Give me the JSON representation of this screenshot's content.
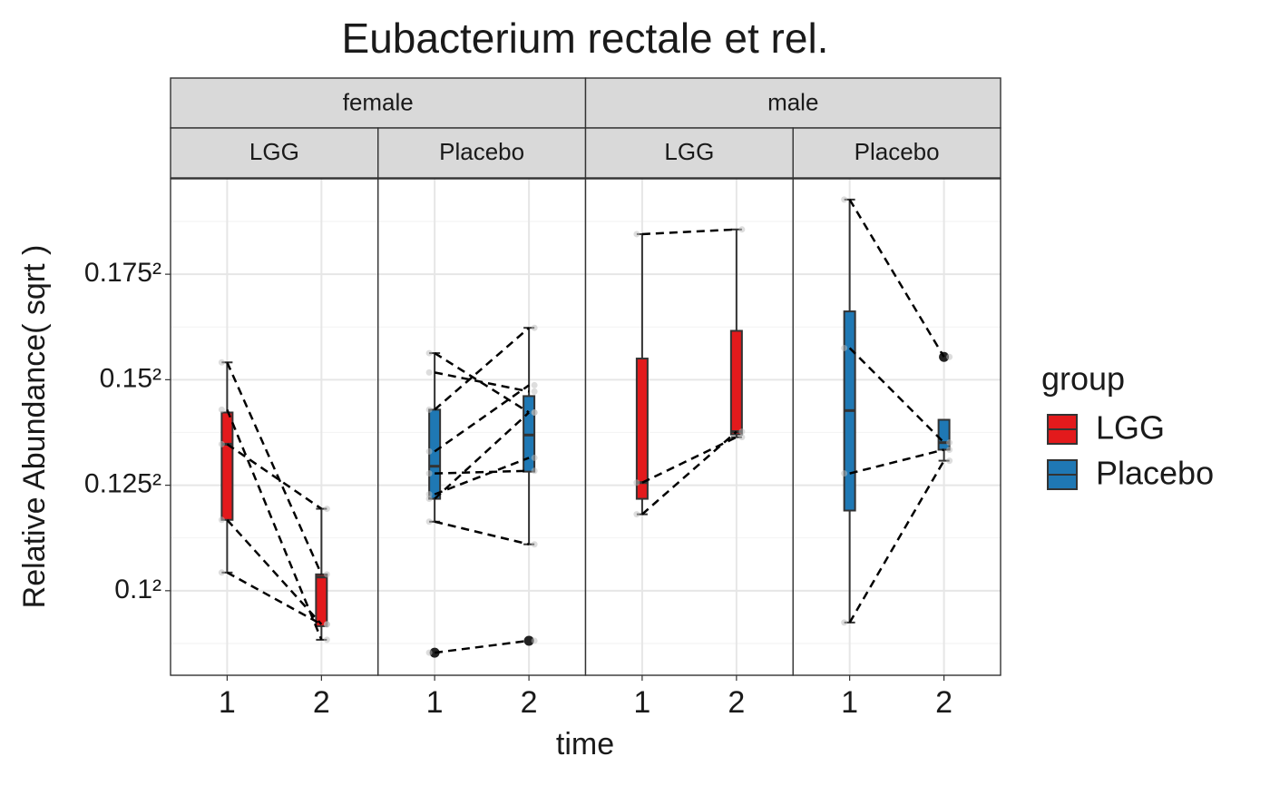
{
  "chart_data": {
    "type": "boxplot",
    "title": "Eubacterium rectale et rel.",
    "xlabel": "time",
    "ylabel": "Relative Abundance( sqrt )",
    "yscale": "sqrt",
    "ylim": [
      0.006394,
      0.03905
    ],
    "yticks": [
      {
        "value": 0.01,
        "label": "0.1²"
      },
      {
        "value": 0.015625,
        "label": "0.125²"
      },
      {
        "value": 0.0225,
        "label": "0.15²"
      },
      {
        "value": 0.030625,
        "label": "0.175²"
      }
    ],
    "yminor_ticks": [
      0.007656,
      0.01266,
      0.01891,
      0.02641,
      0.03516
    ],
    "grid": true,
    "legend_title": "group",
    "series": [
      {
        "name": "LGG",
        "color": "#e31a1c"
      },
      {
        "name": "Placebo",
        "color": "#1f78b4"
      }
    ],
    "facet_rows": [
      {
        "label": "female",
        "panels": [
          {
            "label": "LGG",
            "color": "#e31a1c",
            "categories": [
              "1",
              "2"
            ],
            "boxes": [
              {
                "min": 0.01088,
                "q1": 0.01364,
                "median": 0.01815,
                "q3": 0.02023,
                "max": 0.02375,
                "outliers": []
              },
              {
                "min": 0.00781,
                "q1": 0.00839,
                "median": 0.01066,
                "q3": 0.01079,
                "max": 0.01426,
                "outliers": []
              }
            ],
            "subjects": [
              [
                0.02375,
                0.01079
              ],
              [
                0.02042,
                0.00781
              ],
              [
                0.01815,
                0.01426
              ],
              [
                0.01364,
                0.00847
              ],
              [
                0.01088,
                0.00847
              ]
            ]
          },
          {
            "label": "Placebo",
            "color": "#1f78b4",
            "categories": [
              "1",
              "2"
            ],
            "boxes": [
              {
                "min": 0.01354,
                "q1": 0.01483,
                "median": 0.01677,
                "q3": 0.02042,
                "max": 0.02443,
                "outliers": [
                  0.00728
                ]
              },
              {
                "min": 0.01232,
                "q1": 0.01644,
                "median": 0.01874,
                "q3": 0.02135,
                "max": 0.02634,
                "outliers": [
                  0.00777
                ]
              }
            ],
            "subjects": [
              [
                0.02443,
                0.02023
              ],
              [
                0.02302,
                0.02167
              ],
              [
                0.02042,
                0.02634
              ],
              [
                0.01769,
                0.02211
              ],
              [
                0.01633,
                0.01649
              ],
              [
                0.01483,
                0.02023
              ],
              [
                0.01509,
                0.01729
              ],
              [
                0.01354,
                0.01232
              ],
              [
                0.00728,
                0.00777
              ]
            ]
          }
        ]
      },
      {
        "label": "male",
        "panels": [
          {
            "label": "LGG",
            "color": "#e31a1c",
            "categories": [
              "1",
              "2"
            ],
            "boxes": [
              {
                "min": 0.01395,
                "q1": 0.01483,
                "median": 0.01578,
                "q3": 0.02403,
                "max": 0.03404,
                "outliers": []
              },
              {
                "min": 0.0186,
                "q1": 0.01878,
                "median": 0.01896,
                "q3": 0.02611,
                "max": 0.03445,
                "outliers": []
              }
            ],
            "subjects": [
              [
                0.03404,
                0.03445
              ],
              [
                0.01578,
                0.0186
              ],
              [
                0.01395,
                0.01896
              ]
            ]
          },
          {
            "label": "Placebo",
            "color": "#1f78b4",
            "categories": [
              "1",
              "2"
            ],
            "boxes": [
              {
                "min": 0.00855,
                "q1": 0.01416,
                "median": 0.02036,
                "q3": 0.02762,
                "max": 0.03713,
                "outliers": []
              },
              {
                "min": 0.01711,
                "q1": 0.0178,
                "median": 0.01825,
                "q3": 0.01974,
                "max": 0.01974,
                "outliers": [
                  0.02415
                ]
              }
            ],
            "subjects": [
              [
                0.03713,
                0.02415
              ],
              [
                0.02481,
                0.01825
              ],
              [
                0.01633,
                0.0178
              ],
              [
                0.00855,
                0.01711
              ]
            ]
          }
        ]
      }
    ]
  }
}
